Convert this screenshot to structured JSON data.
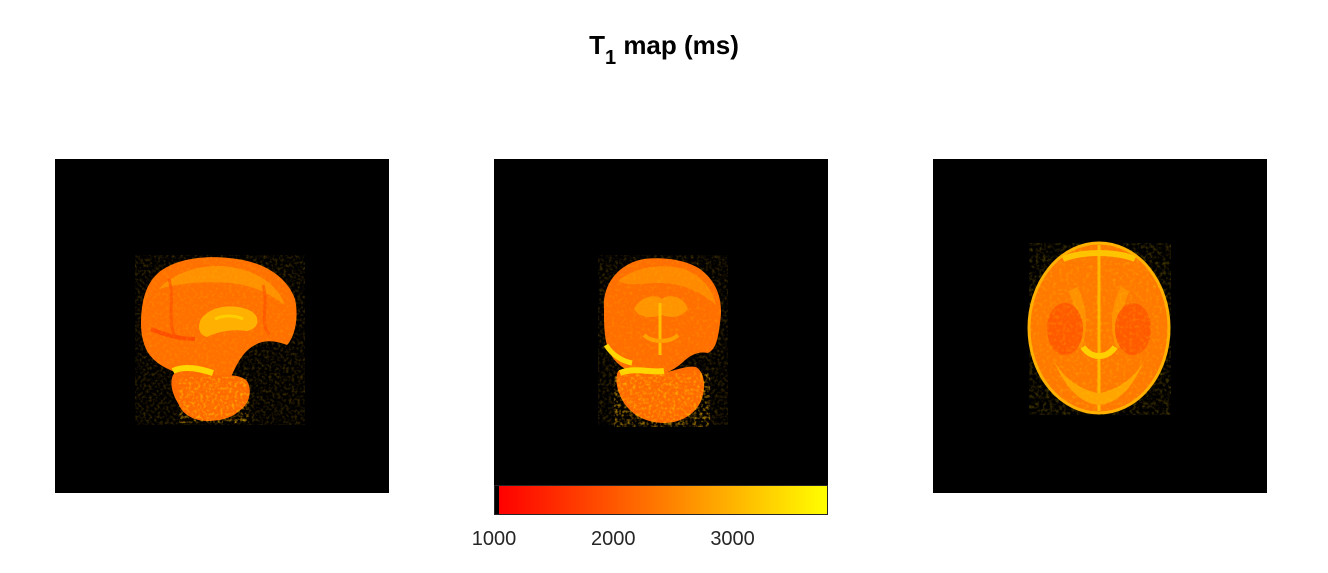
{
  "figure": {
    "title_main": "T",
    "title_sub": "1",
    "title_rest": " map (ms)"
  },
  "panels": [
    {
      "view": "sagittal"
    },
    {
      "view": "coronal"
    },
    {
      "view": "axial"
    }
  ],
  "colorbar": {
    "colormap": "autumn",
    "colors": [
      "#000000",
      "#ff0000",
      "#ff8000",
      "#ffff00"
    ],
    "min": 1000,
    "max": 3800,
    "ticks": [
      {
        "value": 1000,
        "label": "1000"
      },
      {
        "value": 2000,
        "label": "2000"
      },
      {
        "value": 3000,
        "label": "3000"
      }
    ]
  }
}
